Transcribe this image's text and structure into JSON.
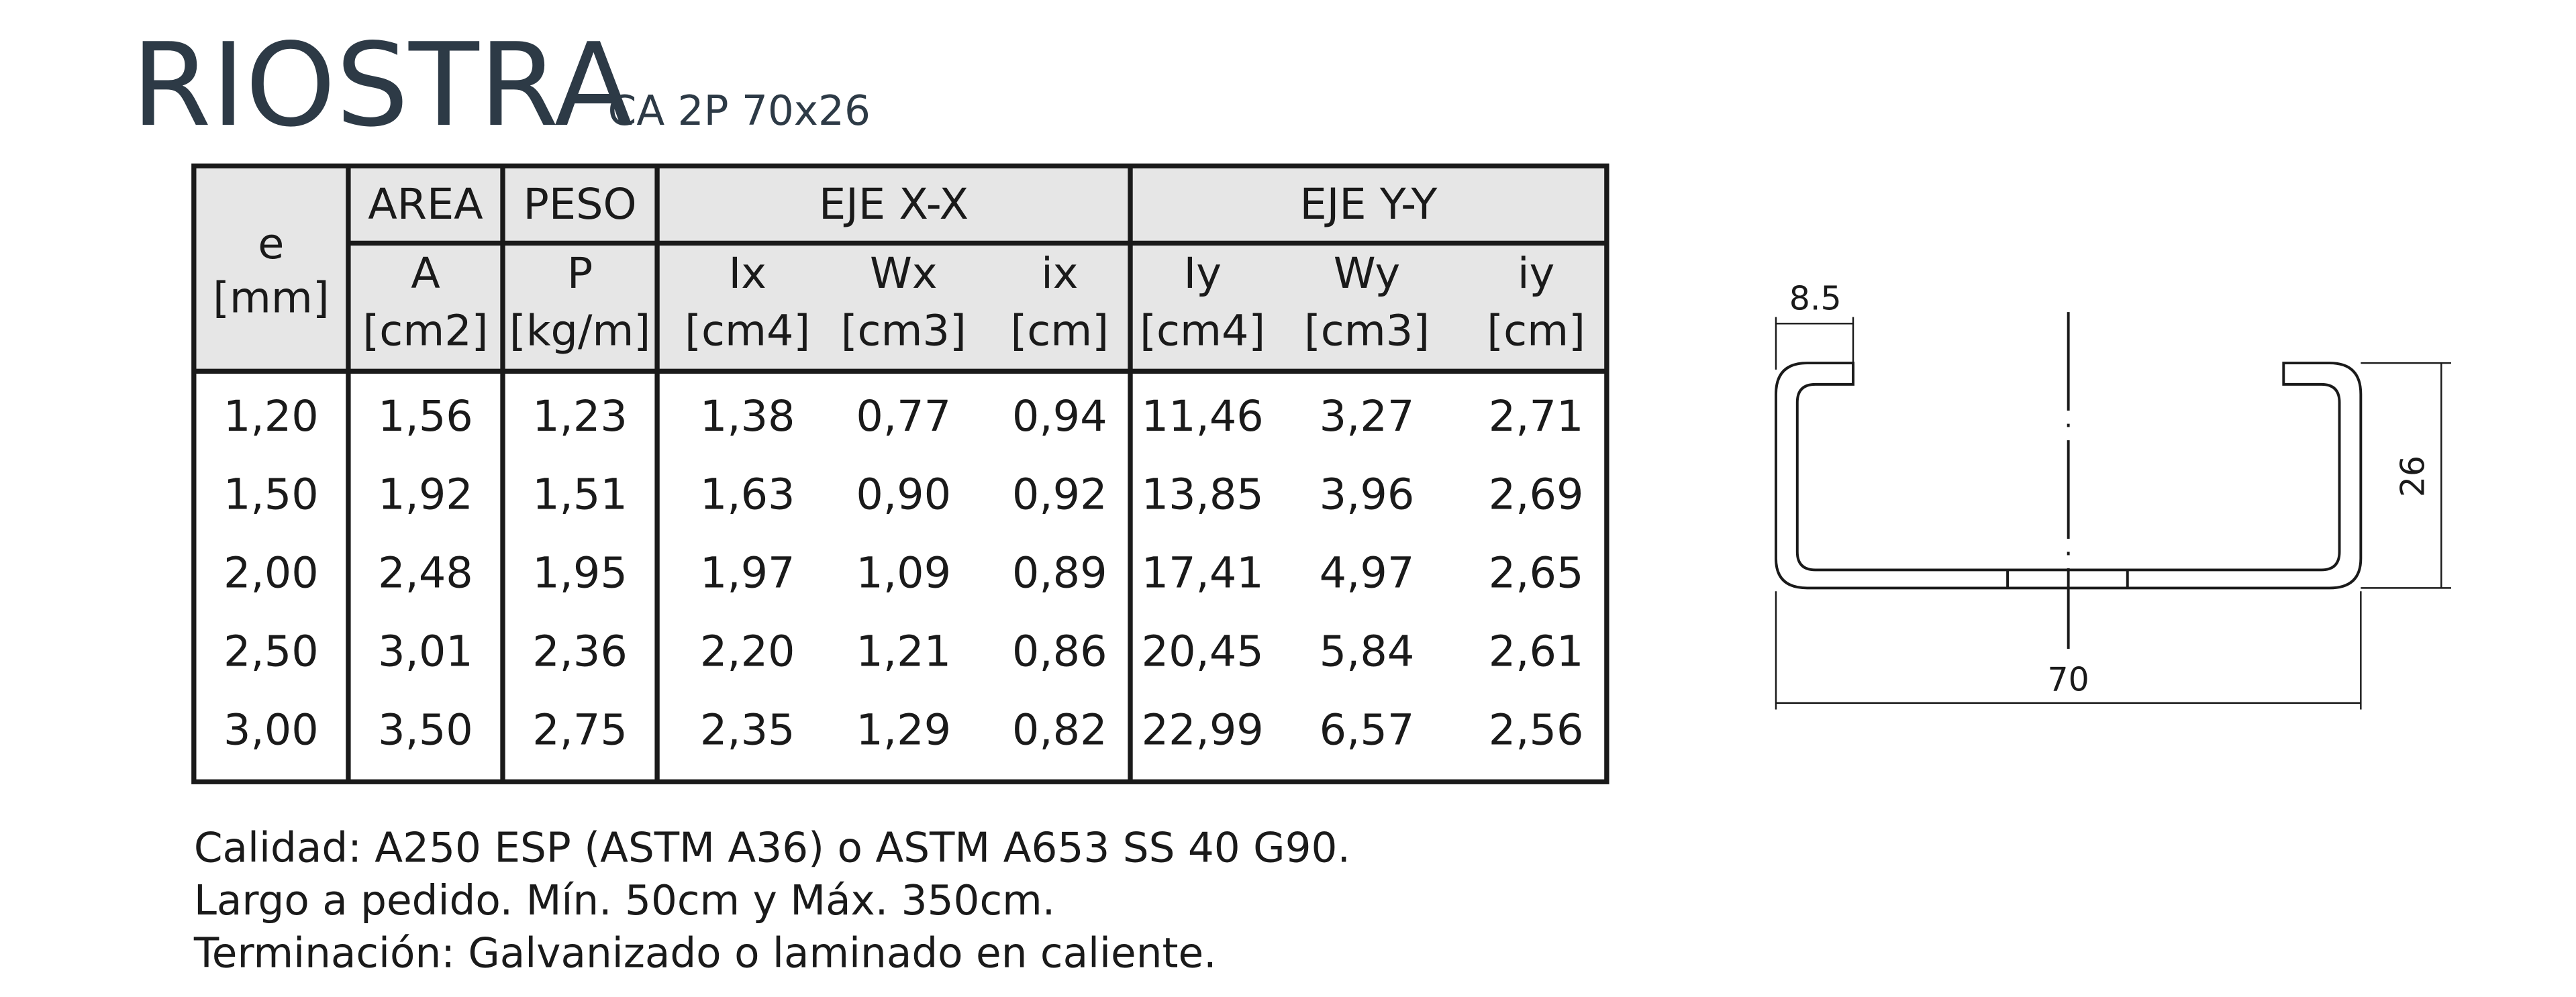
{
  "header": {
    "title": "RIOSTRA",
    "subtitle": "CA 2P 70x26"
  },
  "table": {
    "groups": [
      "AREA",
      "PESO",
      "EJE X-X",
      "EJE Y-Y"
    ],
    "columns": [
      {
        "symbol": "e",
        "unit": "[mm]"
      },
      {
        "symbol": "A",
        "unit": "[cm2]"
      },
      {
        "symbol": "P",
        "unit": "[kg/m]"
      },
      {
        "symbol": "Ix",
        "unit": "[cm4]"
      },
      {
        "symbol": "Wx",
        "unit": "[cm3]"
      },
      {
        "symbol": "ix",
        "unit": "[cm]"
      },
      {
        "symbol": "Iy",
        "unit": "[cm4]"
      },
      {
        "symbol": "Wy",
        "unit": "[cm3]"
      },
      {
        "symbol": "iy",
        "unit": "[cm]"
      }
    ],
    "rows": [
      [
        "1,20",
        "1,56",
        "1,23",
        "1,38",
        "0,77",
        "0,94",
        "11,46",
        "3,27",
        "2,71"
      ],
      [
        "1,50",
        "1,92",
        "1,51",
        "1,63",
        "0,90",
        "0,92",
        "13,85",
        "3,96",
        "2,69"
      ],
      [
        "2,00",
        "2,48",
        "1,95",
        "1,97",
        "1,09",
        "0,89",
        "17,41",
        "4,97",
        "2,65"
      ],
      [
        "2,50",
        "3,01",
        "2,36",
        "2,20",
        "1,21",
        "0,86",
        "20,45",
        "5,84",
        "2,61"
      ],
      [
        "3,00",
        "3,50",
        "2,75",
        "2,35",
        "1,29",
        "0,82",
        "22,99",
        "6,57",
        "2,56"
      ]
    ]
  },
  "notes": [
    "Calidad: A250 ESP (ASTM A36) o ASTM A653 SS 40 G90.",
    "Largo a pedido. Mín. 50cm y Máx. 350cm.",
    "Terminación: Galvanizado o laminado en caliente."
  ],
  "diagram": {
    "lip_label": "8.5",
    "height_label": "26",
    "width_label": "70"
  }
}
